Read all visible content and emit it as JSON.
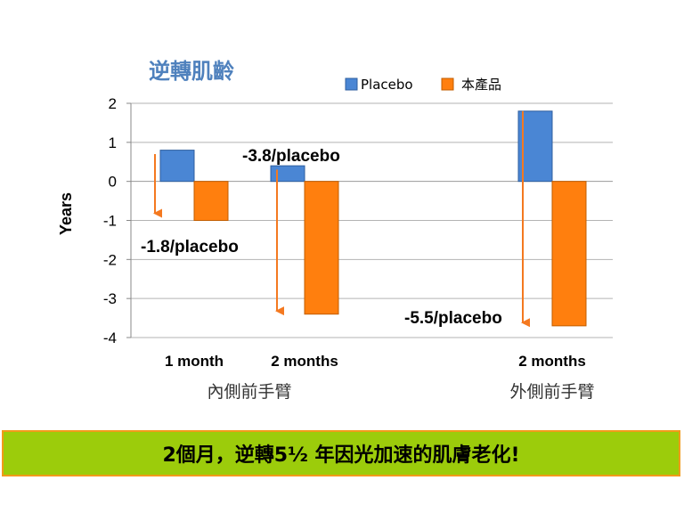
{
  "chart_data": {
    "type": "bar",
    "title": "逆轉肌齡",
    "ylabel": "Years",
    "ylim": [
      -4,
      2
    ],
    "yticks": [
      2,
      1,
      0,
      -1,
      -2,
      -3,
      -4
    ],
    "grid": true,
    "legend_position": "top-right",
    "categories": [
      "1 month",
      "2 months",
      "2 months"
    ],
    "groups": [
      {
        "label": "內側前手臂",
        "categories": [
          0,
          1
        ]
      },
      {
        "label": "外側前手臂",
        "categories": [
          2
        ]
      }
    ],
    "series": [
      {
        "name": "Placebo",
        "color": "#4a86d4",
        "values": [
          0.8,
          0.4,
          1.8
        ]
      },
      {
        "name": "本產品",
        "color": "#ff7f0e",
        "values": [
          -1.0,
          -3.4,
          -3.7
        ]
      }
    ],
    "annotations": [
      {
        "text": "-1.8/placebo",
        "category": 0,
        "arrow_from": 0.7,
        "arrow_to": -1.0
      },
      {
        "text": "-3.8/placebo",
        "category": 1,
        "arrow_from": 0.3,
        "arrow_to": -3.5
      },
      {
        "text": "-5.5/placebo",
        "category": 2,
        "arrow_from": 1.8,
        "arrow_to": -3.8
      }
    ]
  },
  "banner": {
    "text": "2個月，逆轉5½ 年因光加速的肌膚老化!"
  }
}
